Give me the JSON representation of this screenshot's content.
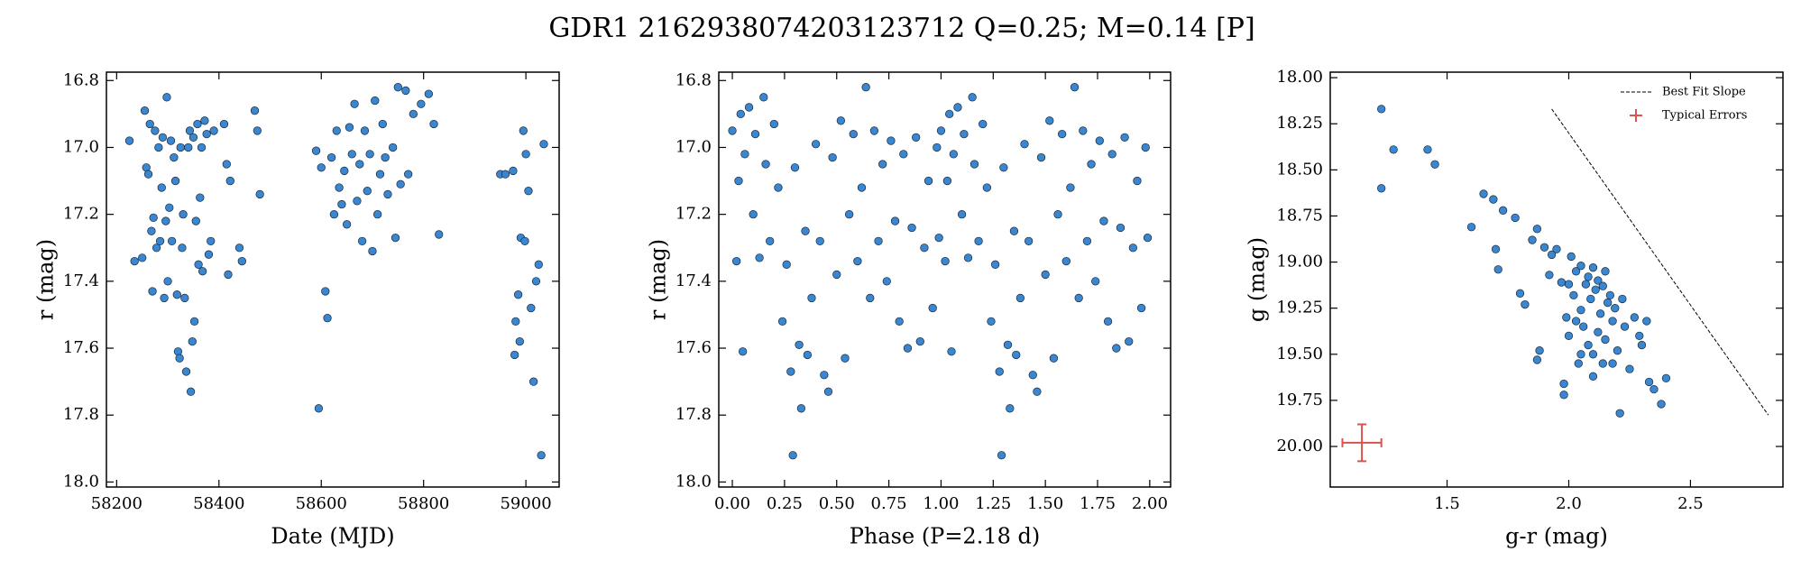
{
  "title": "GDR1 2162938074203123712  Q=0.25; M=0.14 [P]",
  "chart_data": [
    {
      "type": "scatter",
      "xlabel": "Date (MJD)",
      "ylabel": "r (mag)",
      "color": "#3a86d1",
      "xlim": [
        58180,
        59065
      ],
      "ylim": [
        18.015,
        16.775
      ],
      "xticks": [
        58200,
        58400,
        58600,
        58800,
        59000
      ],
      "yticks": [
        16.8,
        {
          "value": 17,
          "label": "17.0"
        },
        17.2,
        17.4,
        17.6,
        17.8,
        {
          "value": 18,
          "label": "18.0"
        }
      ],
      "x": [
        58225,
        58235,
        58250,
        58255,
        58258,
        58262,
        58265,
        58268,
        58270,
        58272,
        58275,
        58278,
        58282,
        58285,
        58288,
        58290,
        58293,
        58296,
        58298,
        58300,
        58303,
        58306,
        58308,
        58312,
        58315,
        58318,
        58320,
        58323,
        58325,
        58328,
        58330,
        58333,
        58336,
        58340,
        58343,
        58345,
        58348,
        58350,
        58352,
        58355,
        58358,
        58360,
        58363,
        58366,
        58368,
        58372,
        58376,
        58380,
        58384,
        58390,
        58410,
        58415,
        58418,
        58422,
        58440,
        58445,
        58470,
        58475,
        58480,
        58590,
        58595,
        58600,
        58608,
        58612,
        58620,
        58625,
        58630,
        58635,
        58640,
        58645,
        58650,
        58655,
        58660,
        58665,
        58670,
        58675,
        58680,
        58685,
        58690,
        58695,
        58700,
        58705,
        58710,
        58715,
        58720,
        58725,
        58730,
        58740,
        58745,
        58750,
        58755,
        58765,
        58770,
        58780,
        58795,
        58810,
        58820,
        58830,
        58950,
        58960,
        58975,
        58978,
        58980,
        58985,
        58988,
        58990,
        58995,
        58998,
        59000,
        59005,
        59010,
        59015,
        59020,
        59025,
        59030,
        59035
      ],
      "values": [
        16.98,
        17.34,
        17.33,
        16.89,
        17.06,
        17.08,
        16.93,
        17.25,
        17.43,
        17.21,
        16.95,
        17.3,
        17.0,
        17.28,
        17.12,
        16.97,
        17.45,
        17.22,
        16.85,
        17.4,
        17.18,
        16.98,
        17.28,
        17.03,
        17.1,
        17.44,
        17.61,
        17.63,
        17.0,
        17.3,
        17.2,
        17.45,
        17.67,
        17.0,
        16.95,
        17.73,
        17.58,
        16.97,
        17.52,
        17.22,
        16.93,
        17.35,
        17.15,
        17.0,
        17.37,
        16.92,
        16.96,
        17.32,
        17.28,
        16.95,
        16.93,
        17.05,
        17.38,
        17.1,
        17.3,
        17.34,
        16.89,
        16.95,
        17.14,
        17.01,
        17.78,
        17.06,
        17.43,
        17.51,
        17.03,
        17.2,
        16.95,
        17.12,
        17.17,
        17.07,
        17.23,
        16.94,
        17.02,
        16.87,
        17.16,
        17.05,
        17.28,
        16.95,
        17.13,
        17.02,
        17.31,
        16.86,
        17.2,
        17.08,
        16.93,
        17.03,
        17.14,
        17.0,
        17.27,
        16.82,
        17.11,
        16.83,
        17.08,
        16.9,
        16.87,
        16.84,
        16.93,
        17.26,
        17.08,
        17.08,
        17.07,
        17.62,
        17.52,
        17.44,
        17.58,
        17.27,
        16.95,
        17.28,
        17.02,
        17.13,
        17.48,
        17.7,
        17.4,
        17.35,
        17.92,
        16.99
      ]
    },
    {
      "type": "scatter",
      "xlabel": "Phase (P=2.18 d)",
      "ylabel": "r (mag)",
      "color": "#3a86d1",
      "xlim": [
        -0.065,
        2.1
      ],
      "ylim": [
        18.015,
        16.775
      ],
      "xticks": [
        {
          "value": 0,
          "label": "0.00"
        },
        0.25,
        {
          "value": 0.5,
          "label": "0.50"
        },
        0.75,
        {
          "value": 1,
          "label": "1.00"
        },
        1.25,
        {
          "value": 1.5,
          "label": "1.50"
        },
        1.75,
        {
          "value": 2,
          "label": "2.00"
        }
      ],
      "yticks": [
        16.8,
        {
          "value": 17,
          "label": "17.0"
        },
        17.2,
        17.4,
        17.6,
        17.8,
        {
          "value": 18,
          "label": "18.0"
        }
      ],
      "x": [
        0.0,
        0.02,
        0.03,
        0.04,
        0.05,
        0.06,
        0.08,
        0.1,
        0.11,
        0.13,
        0.15,
        0.16,
        0.18,
        0.2,
        0.22,
        0.24,
        0.26,
        0.28,
        0.29,
        0.3,
        0.32,
        0.33,
        0.35,
        0.36,
        0.38,
        0.4,
        0.42,
        0.44,
        0.46,
        0.48,
        0.5,
        0.52,
        0.54,
        0.56,
        0.58,
        0.6,
        0.62,
        0.64,
        0.66,
        0.68,
        0.7,
        0.72,
        0.74,
        0.76,
        0.78,
        0.8,
        0.82,
        0.84,
        0.86,
        0.88,
        0.9,
        0.92,
        0.94,
        0.96,
        0.98,
        0.99,
        1.0,
        1.02,
        1.03,
        1.04,
        1.05,
        1.06,
        1.08,
        1.1,
        1.11,
        1.13,
        1.15,
        1.16,
        1.18,
        1.2,
        1.22,
        1.24,
        1.26,
        1.28,
        1.29,
        1.3,
        1.32,
        1.33,
        1.35,
        1.36,
        1.38,
        1.4,
        1.42,
        1.44,
        1.46,
        1.48,
        1.5,
        1.52,
        1.54,
        1.56,
        1.58,
        1.6,
        1.62,
        1.64,
        1.66,
        1.68,
        1.7,
        1.72,
        1.74,
        1.76,
        1.78,
        1.8,
        1.82,
        1.84,
        1.86,
        1.88,
        1.9,
        1.92,
        1.94,
        1.96,
        1.98,
        1.99
      ],
      "values": [
        16.95,
        17.34,
        17.1,
        16.9,
        17.61,
        17.02,
        16.88,
        17.2,
        16.96,
        17.33,
        16.85,
        17.05,
        17.28,
        16.93,
        17.12,
        17.52,
        17.35,
        17.67,
        17.92,
        17.06,
        17.59,
        17.78,
        17.25,
        17.62,
        17.45,
        16.99,
        17.28,
        17.68,
        17.73,
        17.03,
        17.38,
        16.92,
        17.63,
        17.2,
        16.96,
        17.34,
        17.12,
        16.82,
        17.45,
        16.95,
        17.28,
        17.05,
        17.4,
        16.98,
        17.22,
        17.52,
        17.02,
        17.6,
        17.24,
        16.97,
        17.58,
        17.3,
        17.1,
        17.48,
        17.0,
        17.27,
        16.95,
        17.34,
        17.1,
        16.9,
        17.61,
        17.02,
        16.88,
        17.2,
        16.96,
        17.33,
        16.85,
        17.05,
        17.28,
        16.93,
        17.12,
        17.52,
        17.35,
        17.67,
        17.92,
        17.06,
        17.59,
        17.78,
        17.25,
        17.62,
        17.45,
        16.99,
        17.28,
        17.68,
        17.73,
        17.03,
        17.38,
        16.92,
        17.63,
        17.2,
        16.96,
        17.34,
        17.12,
        16.82,
        17.45,
        16.95,
        17.28,
        17.05,
        17.4,
        16.98,
        17.22,
        17.52,
        17.02,
        17.6,
        17.24,
        16.97,
        17.58,
        17.3,
        17.1,
        17.48,
        17.0,
        17.27
      ]
    },
    {
      "type": "scatter",
      "xlabel": "g-r (mag)",
      "ylabel": "g (mag)",
      "color": "#3a86d1",
      "xlim": [
        1.02,
        2.88
      ],
      "ylim": [
        20.22,
        17.97
      ],
      "xticks": [
        1.5,
        {
          "value": 2,
          "label": "2.0"
        },
        2.5
      ],
      "yticks": [
        {
          "value": 18,
          "label": "18.00"
        },
        18.25,
        {
          "value": 18.5,
          "label": "18.50"
        },
        18.75,
        {
          "value": 19,
          "label": "19.00"
        },
        19.25,
        {
          "value": 19.5,
          "label": "19.50"
        },
        19.75,
        {
          "value": 20,
          "label": "20.00"
        }
      ],
      "x": [
        1.23,
        1.23,
        1.28,
        1.42,
        1.45,
        1.6,
        1.65,
        1.69,
        1.73,
        1.7,
        1.71,
        1.78,
        1.8,
        1.82,
        1.85,
        1.87,
        1.88,
        1.87,
        1.9,
        1.92,
        1.93,
        1.95,
        1.97,
        1.98,
        1.98,
        1.99,
        2.0,
        2.01,
        2.02,
        2.03,
        2.04,
        2.05,
        2.05,
        2.06,
        2.07,
        2.08,
        2.08,
        2.09,
        2.1,
        2.1,
        2.11,
        2.12,
        2.12,
        2.13,
        2.14,
        2.14,
        2.15,
        2.15,
        2.16,
        2.17,
        2.18,
        2.19,
        2.2,
        2.21,
        2.22,
        2.23,
        2.25,
        2.27,
        2.29,
        2.3,
        2.32,
        2.33,
        2.35,
        2.38,
        2.4,
        2.05,
        2.0,
        2.03,
        2.18,
        2.1
      ],
      "values": [
        18.17,
        18.6,
        18.39,
        18.39,
        18.47,
        18.81,
        18.63,
        18.66,
        18.72,
        18.93,
        19.04,
        18.76,
        19.17,
        19.23,
        18.88,
        19.53,
        19.48,
        18.82,
        18.92,
        19.07,
        18.96,
        18.93,
        19.11,
        19.66,
        19.72,
        19.3,
        19.4,
        18.97,
        19.18,
        19.05,
        19.55,
        19.02,
        19.26,
        19.35,
        19.12,
        19.45,
        19.08,
        19.2,
        19.5,
        19.03,
        19.15,
        19.38,
        19.1,
        19.28,
        19.55,
        19.13,
        19.05,
        19.42,
        19.22,
        19.18,
        19.32,
        19.25,
        19.48,
        19.82,
        19.2,
        19.35,
        19.58,
        19.3,
        19.4,
        19.45,
        19.32,
        19.65,
        19.69,
        19.77,
        19.63,
        19.5,
        19.12,
        19.32,
        19.55,
        19.62
      ],
      "best_fit": {
        "name": "Best Fit Slope",
        "color": "#000000",
        "x": [
          1.93,
          2.82
        ],
        "y": [
          18.17,
          19.83
        ]
      },
      "errorbar": {
        "name": "Typical Errors",
        "color": "#d9534f",
        "x": 1.15,
        "y": 19.98,
        "xerr": 0.08,
        "yerr": 0.1
      },
      "legend": "upper right"
    }
  ]
}
